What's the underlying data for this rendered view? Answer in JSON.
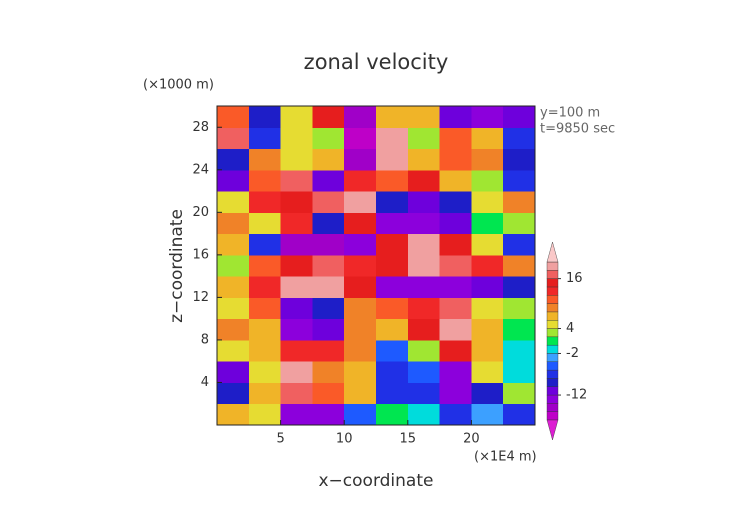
{
  "chart_data": {
    "type": "heatmap",
    "title": "zonal velocity",
    "x_label": "x−coordinate",
    "y_label": "z−coordinate",
    "x_unit": "(×1E4 m)",
    "y_unit": "(×1000 m)",
    "annotations": [
      "y=100 m",
      "t=9850 sec"
    ],
    "x_edges": [
      0,
      2.5,
      5,
      7.5,
      10,
      12.5,
      15,
      17.5,
      20,
      22.5,
      25
    ],
    "y_edges": [
      0,
      2,
      4,
      6,
      8,
      10,
      12,
      14,
      16,
      18,
      20,
      22,
      24,
      26,
      28,
      30
    ],
    "z": [
      [
        6,
        4,
        -14,
        -14,
        -6,
        0,
        -2,
        -8,
        -4,
        -8
      ],
      [
        -10,
        6,
        16,
        10,
        6,
        -8,
        -8,
        -14,
        -10,
        2
      ],
      [
        -12,
        4,
        18,
        8,
        6,
        -8,
        -6,
        -14,
        4,
        -2
      ],
      [
        4,
        6,
        12,
        12,
        8,
        -6,
        2,
        14,
        6,
        -2
      ],
      [
        8,
        6,
        -14,
        -12,
        8,
        6,
        14,
        18,
        6,
        0
      ],
      [
        4,
        10,
        -12,
        -10,
        8,
        10,
        12,
        16,
        4,
        2
      ],
      [
        6,
        12,
        18,
        18,
        14,
        -14,
        -14,
        -14,
        -12,
        -10
      ],
      [
        2,
        10,
        14,
        16,
        12,
        14,
        18,
        16,
        12,
        8
      ],
      [
        6,
        -8,
        -16,
        -16,
        -14,
        14,
        18,
        14,
        4,
        -8
      ],
      [
        8,
        4,
        12,
        -10,
        14,
        -14,
        -14,
        -12,
        0,
        2
      ],
      [
        4,
        12,
        14,
        16,
        18,
        -10,
        -12,
        -10,
        4,
        8
      ],
      [
        -12,
        10,
        16,
        -12,
        12,
        10,
        14,
        6,
        2,
        -8
      ],
      [
        -10,
        8,
        4,
        6,
        -16,
        18,
        6,
        10,
        8,
        -10
      ],
      [
        16,
        -8,
        4,
        2,
        -18,
        18,
        2,
        10,
        6,
        -8
      ],
      [
        10,
        -10,
        4,
        14,
        -16,
        6,
        6,
        -12,
        -14,
        -12
      ]
    ],
    "xlim": [
      0,
      25
    ],
    "ylim": [
      0,
      30
    ],
    "xticks": [
      5,
      10,
      15,
      20
    ],
    "yticks": [
      4,
      8,
      12,
      16,
      20,
      24,
      28
    ],
    "levels": [
      -18,
      -16,
      -14,
      -12,
      -10,
      -8,
      -6,
      -4,
      -2,
      0,
      2,
      4,
      6,
      8,
      10,
      12,
      14,
      16,
      18,
      20
    ],
    "colors": [
      "#dc1ed2",
      "#be00c8",
      "#a000c8",
      "#8c00dc",
      "#6e00dc",
      "#1e1ec8",
      "#2030e6",
      "#1e5aff",
      "#3ca0ff",
      "#00dcdc",
      "#00e650",
      "#a0e632",
      "#e6dc32",
      "#f0b428",
      "#f08228",
      "#fa5a28",
      "#f02828",
      "#e61e1e",
      "#f06060",
      "#f0a0a0",
      "#fac8c8"
    ],
    "colorbar_ticks": [
      -12,
      -2,
      4,
      16
    ]
  }
}
